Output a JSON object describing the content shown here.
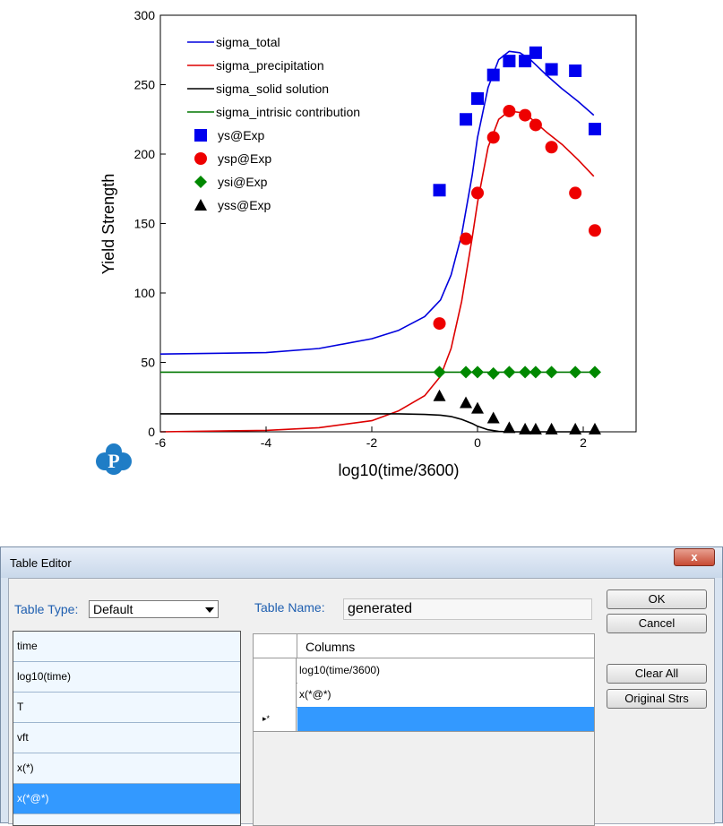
{
  "chart_data": {
    "type": "line",
    "xlabel": "log10(time/3600)",
    "ylabel": "Yield Strength",
    "xlim": [
      -6,
      3
    ],
    "ylim": [
      0,
      300
    ],
    "xticks": [
      -6,
      -4,
      -2,
      0,
      2
    ],
    "yticks": [
      0,
      50,
      100,
      150,
      200,
      250,
      300
    ],
    "grid": false,
    "legend_position": "top-left",
    "series": [
      {
        "name": "sigma_total",
        "kind": "line",
        "color": "#0000dd",
        "x": [
          -6,
          -4,
          -3,
          -2,
          -1.5,
          -1,
          -0.7,
          -0.5,
          -0.3,
          -0.1,
          0,
          0.2,
          0.4,
          0.6,
          0.8,
          1.0,
          1.3,
          1.6,
          1.9,
          2.2
        ],
        "y": [
          56,
          57,
          60,
          67,
          73,
          83,
          95,
          113,
          142,
          185,
          212,
          248,
          268,
          274,
          273,
          268,
          257,
          247,
          238,
          228
        ]
      },
      {
        "name": "sigma_precipitation",
        "kind": "line",
        "color": "#dd0000",
        "x": [
          -6,
          -4,
          -3,
          -2,
          -1.5,
          -1,
          -0.7,
          -0.5,
          -0.3,
          -0.1,
          0,
          0.2,
          0.4,
          0.6,
          0.8,
          1.0,
          1.3,
          1.6,
          1.9,
          2.2
        ],
        "y": [
          0,
          1,
          3,
          8,
          15,
          26,
          40,
          60,
          94,
          140,
          165,
          205,
          225,
          231,
          230,
          226,
          216,
          207,
          196,
          184
        ]
      },
      {
        "name": "sigma_solid solution",
        "kind": "line",
        "color": "#000000",
        "x": [
          -6,
          -4,
          -3,
          -2,
          -1.5,
          -1,
          -0.7,
          -0.5,
          -0.3,
          -0.1,
          0,
          0.2,
          0.4,
          0.6,
          0.8,
          1.0,
          1.5,
          2.2
        ],
        "y": [
          13,
          13,
          13,
          13,
          13,
          12.5,
          12,
          11,
          9,
          6,
          4,
          1.5,
          0.3,
          0,
          0,
          0,
          0,
          0
        ]
      },
      {
        "name": "sigma_intrisic contribution",
        "kind": "line",
        "color": "#007700",
        "x": [
          -6,
          2.2
        ],
        "y": [
          43,
          43
        ]
      },
      {
        "name": "ys@Exp",
        "kind": "marker",
        "marker": "square",
        "color": "#0000ee",
        "x": [
          -0.72,
          -0.22,
          0,
          0.3,
          0.6,
          0.9,
          1.1,
          1.4,
          1.85,
          2.22
        ],
        "y": [
          174,
          225,
          240,
          257,
          267,
          267,
          273,
          261,
          260,
          218
        ]
      },
      {
        "name": "ysp@Exp",
        "kind": "marker",
        "marker": "circle",
        "color": "#ee0000",
        "x": [
          -0.72,
          -0.22,
          0,
          0.3,
          0.6,
          0.9,
          1.1,
          1.4,
          1.85,
          2.22
        ],
        "y": [
          78,
          139,
          172,
          212,
          231,
          228,
          221,
          205,
          172,
          145
        ]
      },
      {
        "name": "ysi@Exp",
        "kind": "marker",
        "marker": "diamond",
        "color": "#008800",
        "x": [
          -0.72,
          -0.22,
          0,
          0.3,
          0.6,
          0.9,
          1.1,
          1.4,
          1.85,
          2.22
        ],
        "y": [
          43,
          43,
          43,
          42,
          43,
          43,
          43,
          43,
          43,
          43
        ]
      },
      {
        "name": "yss@Exp",
        "kind": "marker",
        "marker": "triangle",
        "color": "#000000",
        "x": [
          -0.72,
          -0.22,
          0,
          0.3,
          0.6,
          0.9,
          1.1,
          1.4,
          1.85,
          2.22
        ],
        "y": [
          26,
          21,
          17,
          10,
          3,
          2,
          2,
          2,
          2,
          2
        ]
      }
    ]
  },
  "logo": {
    "name": "pandat-logo",
    "letter": "P",
    "color": "#1f7dc6"
  },
  "dialog": {
    "title": "Table Editor",
    "close_glyph": "x",
    "table_type_label": "Table Type:",
    "table_type_value": "Default",
    "table_name_label": "Table Name:",
    "table_name_value": "generated",
    "variables": [
      "time",
      "log10(time)",
      "T",
      "vft",
      "x(*)",
      "x(*@*)"
    ],
    "selected_variable_index": 5,
    "grid_header": "Columns",
    "grid_rows": [
      {
        "marker": "",
        "value": "log10(time/3600)"
      },
      {
        "marker": "",
        "value": "x(*@*)"
      },
      {
        "marker": "▸*",
        "value": ""
      }
    ],
    "buttons": {
      "ok": "OK",
      "cancel": "Cancel",
      "clear_all": "Clear All",
      "original_strs": "Original Strs"
    }
  }
}
